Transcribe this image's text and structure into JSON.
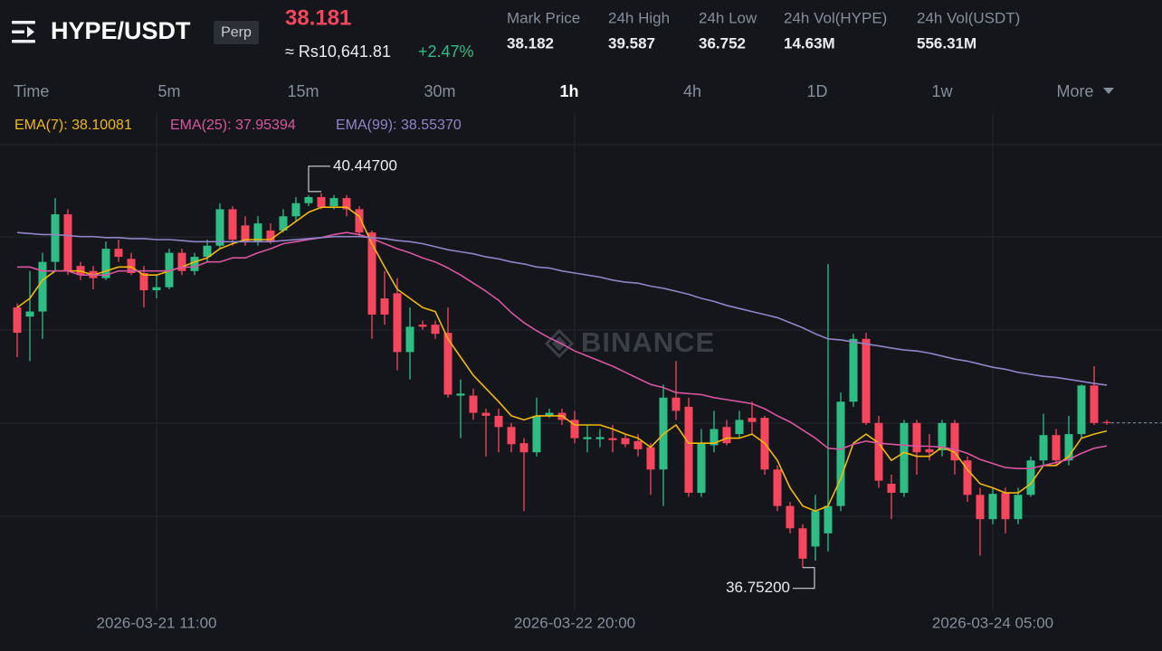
{
  "header": {
    "pair": "HYPE/USDT",
    "contract": "Perp",
    "price": 38.181,
    "price_local": "≈ Rs10,641.81",
    "change": "+2.47%",
    "stats": [
      {
        "label": "Mark Price",
        "value": 38.182
      },
      {
        "label": "24h High",
        "value": 39.587
      },
      {
        "label": "24h Low",
        "value": 36.752
      },
      {
        "label": "24h Vol(HYPE)",
        "value": "14.63M"
      },
      {
        "label": "24h Vol(USDT)",
        "value": "556.31M"
      }
    ]
  },
  "tabs": {
    "items": [
      "Time",
      "5m",
      "15m",
      "30m",
      "1h",
      "4h",
      "1D",
      "1w",
      "More"
    ],
    "active": 4
  },
  "chart_data": {
    "type": "candlestick",
    "categories": [
      null,
      null,
      null,
      null,
      null,
      null,
      null,
      null,
      null,
      null,
      null,
      "2026-03-21 11:00",
      null,
      null,
      null,
      null,
      null,
      null,
      null,
      null,
      null,
      null,
      null,
      null,
      null,
      null,
      null,
      null,
      null,
      null,
      null,
      null,
      null,
      null,
      null,
      null,
      null,
      null,
      null,
      null,
      null,
      null,
      null,
      null,
      "2026-03-22 20:00",
      null,
      null,
      null,
      null,
      null,
      null,
      null,
      null,
      null,
      null,
      null,
      null,
      null,
      null,
      null,
      null,
      null,
      null,
      null,
      null,
      null,
      null,
      null,
      null,
      null,
      null,
      null,
      null,
      null,
      null,
      null,
      null,
      "2026-03-24 05:00",
      null,
      null,
      null,
      null,
      null,
      null,
      null,
      null,
      null
    ],
    "open": [
      39.32,
      39.23,
      39.28,
      39.77,
      40.24,
      39.73,
      39.68,
      39.61,
      39.9,
      39.8,
      39.66,
      39.49,
      39.52,
      39.86,
      39.68,
      39.82,
      39.93,
      40.29,
      40.13,
      39.97,
      40.08,
      40.08,
      40.22,
      40.35,
      40.41,
      40.32,
      40.4,
      40.29,
      40.06,
      39.41,
      39.46,
      38.88,
      39.15,
      39.15,
      39.07,
      38.45,
      38.45,
      38.28,
      38.25,
      38.14,
      37.98,
      37.89,
      38.25,
      38.28,
      38.21,
      38.02,
      38.02,
      38.03,
      38.03,
      38.0,
      37.94,
      37.72,
      38.43,
      38.34,
      37.49,
      37.96,
      38.14,
      38.07,
      38.23,
      38.23,
      37.72,
      37.36,
      37.14,
      36.96,
      37.09,
      37.36,
      38.39,
      39.01,
      38.18,
      37.58,
      37.49,
      38.18,
      37.92,
      37.91,
      38.18,
      37.81,
      37.47,
      37.23,
      37.49,
      37.23,
      37.47,
      37.81,
      38.06,
      37.81,
      38.07,
      38.55,
      38.19
    ],
    "high": [
      39.36,
      39.68,
      39.86,
      40.4,
      40.29,
      39.77,
      39.73,
      39.97,
      39.99,
      39.86,
      39.73,
      39.64,
      39.9,
      39.9,
      39.86,
      39.99,
      40.35,
      40.32,
      40.22,
      40.22,
      40.15,
      40.29,
      40.41,
      40.43,
      40.447,
      40.43,
      40.43,
      40.32,
      40.08,
      39.68,
      39.61,
      39.32,
      39.19,
      39.19,
      39.32,
      38.61,
      38.52,
      38.32,
      38.32,
      38.18,
      38.03,
      38.43,
      38.32,
      38.32,
      38.3,
      38.16,
      38.12,
      38.16,
      38.07,
      38.07,
      37.98,
      38.56,
      38.79,
      38.43,
      38.12,
      38.3,
      38.21,
      38.3,
      38.39,
      38.25,
      37.76,
      37.4,
      37.18,
      37.47,
      39.75,
      38.48,
      39.06,
      39.07,
      38.25,
      37.67,
      38.21,
      38.21,
      38.07,
      38.21,
      38.21,
      37.85,
      37.54,
      37.54,
      37.54,
      37.54,
      37.85,
      38.27,
      38.12,
      38.25,
      38.56,
      38.74,
      38.21
    ],
    "low": [
      38.83,
      38.79,
      39.01,
      39.68,
      39.64,
      39.59,
      39.5,
      39.59,
      39.77,
      39.64,
      39.32,
      39.41,
      39.5,
      39.64,
      39.64,
      39.77,
      39.9,
      39.93,
      39.93,
      39.93,
      39.95,
      40.06,
      40.17,
      40.32,
      40.29,
      40.29,
      40.22,
      40.02,
      39.01,
      39.15,
      38.7,
      38.61,
      39.1,
      39.01,
      38.43,
      38.03,
      38.21,
      37.85,
      37.89,
      37.89,
      37.31,
      37.85,
      38.23,
      38.16,
      37.98,
      37.89,
      37.94,
      37.89,
      37.94,
      37.85,
      37.47,
      37.36,
      38.21,
      37.45,
      37.45,
      37.89,
      37.96,
      38.03,
      38.07,
      37.67,
      37.31,
      37.09,
      36.752,
      36.82,
      36.91,
      37.31,
      38.34,
      38.16,
      37.54,
      37.23,
      37.45,
      37.67,
      37.81,
      37.85,
      37.67,
      37.4,
      36.87,
      37.18,
      37.09,
      37.18,
      37.45,
      37.76,
      37.76,
      37.76,
      38.03,
      38.16,
      38.16
    ],
    "close": [
      39.07,
      39.28,
      39.77,
      40.24,
      39.68,
      39.64,
      39.61,
      39.9,
      39.82,
      39.66,
      39.49,
      39.52,
      39.86,
      39.68,
      39.82,
      39.93,
      40.29,
      39.99,
      39.97,
      40.15,
      39.97,
      40.22,
      40.35,
      40.41,
      40.31,
      40.4,
      40.29,
      40.06,
      39.25,
      39.25,
      38.88,
      39.13,
      39.13,
      39.06,
      38.46,
      38.47,
      38.28,
      38.25,
      38.14,
      37.97,
      37.89,
      38.25,
      38.28,
      38.21,
      38.03,
      38.04,
      38.04,
      38.01,
      37.97,
      37.92,
      37.72,
      38.43,
      38.3,
      37.49,
      37.98,
      38.12,
      37.98,
      38.21,
      38.19,
      37.72,
      37.36,
      37.14,
      36.84,
      37.31,
      37.36,
      38.39,
      39.01,
      38.18,
      37.61,
      37.49,
      38.18,
      37.89,
      37.89,
      38.18,
      37.81,
      37.47,
      37.23,
      37.48,
      37.23,
      37.47,
      37.81,
      38.06,
      37.81,
      38.07,
      38.55,
      38.18,
      38.181
    ],
    "up_color": "#2ebd85",
    "down_color": "#f6465d",
    "ylim": [
      36.33,
      41.24
    ],
    "grid": true,
    "series": [
      {
        "name": "EMA(7): 38.10081",
        "color": "#f0b90b",
        "values": [
          39.32,
          39.41,
          39.59,
          39.68,
          39.68,
          39.68,
          39.64,
          39.68,
          39.72,
          39.72,
          39.64,
          39.64,
          39.68,
          39.72,
          39.77,
          39.81,
          39.9,
          39.95,
          39.99,
          39.99,
          39.99,
          40.08,
          40.17,
          40.26,
          40.31,
          40.31,
          40.31,
          40.22,
          39.95,
          39.72,
          39.5,
          39.41,
          39.32,
          39.28,
          39.01,
          38.83,
          38.65,
          38.52,
          38.39,
          38.25,
          38.21,
          38.25,
          38.25,
          38.25,
          38.16,
          38.16,
          38.16,
          38.12,
          38.07,
          38.03,
          37.94,
          38.07,
          38.16,
          37.98,
          37.98,
          37.98,
          38.03,
          38.03,
          38.07,
          37.98,
          37.81,
          37.54,
          37.36,
          37.31,
          37.36,
          37.63,
          37.98,
          38.07,
          37.98,
          37.81,
          37.89,
          37.85,
          37.85,
          37.94,
          37.89,
          37.72,
          37.58,
          37.54,
          37.49,
          37.49,
          37.58,
          37.76,
          37.76,
          37.85,
          38.03,
          38.07,
          38.10081
        ]
      },
      {
        "name": "EMA(25): 37.95394",
        "color": "#d9559f",
        "values": [
          39.72,
          39.72,
          39.68,
          39.68,
          39.68,
          39.64,
          39.64,
          39.64,
          39.68,
          39.68,
          39.68,
          39.68,
          39.68,
          39.72,
          39.72,
          39.77,
          39.77,
          39.81,
          39.81,
          39.86,
          39.9,
          39.95,
          39.97,
          39.99,
          40.01,
          40.04,
          40.06,
          40.04,
          40.0,
          39.95,
          39.9,
          39.86,
          39.81,
          39.77,
          39.71,
          39.64,
          39.56,
          39.48,
          39.39,
          39.27,
          39.17,
          39.09,
          39.02,
          38.96,
          38.89,
          38.84,
          38.79,
          38.74,
          38.68,
          38.62,
          38.56,
          38.53,
          38.48,
          38.47,
          38.46,
          38.43,
          38.41,
          38.39,
          38.37,
          38.32,
          38.25,
          38.19,
          38.11,
          38.03,
          37.93,
          37.92,
          37.97,
          38.0,
          37.98,
          37.97,
          37.96,
          37.95,
          37.95,
          37.94,
          37.92,
          37.88,
          37.82,
          37.78,
          37.74,
          37.73,
          37.73,
          37.76,
          37.79,
          37.82,
          37.88,
          37.93,
          37.95394
        ]
      },
      {
        "name": "EMA(99): 38.55370",
        "color": "#9283c8",
        "values": [
          40.06,
          40.05,
          40.04,
          40.04,
          40.03,
          40.02,
          40.02,
          40.01,
          40.01,
          40.0,
          40.0,
          39.99,
          39.99,
          39.98,
          39.97,
          39.97,
          39.97,
          39.97,
          39.97,
          39.97,
          39.97,
          39.98,
          39.99,
          40.0,
          40.01,
          40.02,
          40.02,
          40.02,
          40.01,
          40.0,
          39.98,
          39.97,
          39.95,
          39.92,
          39.89,
          39.87,
          39.85,
          39.82,
          39.8,
          39.77,
          39.75,
          39.72,
          39.71,
          39.68,
          39.66,
          39.64,
          39.62,
          39.59,
          39.57,
          39.56,
          39.53,
          39.51,
          39.48,
          39.45,
          39.41,
          39.38,
          39.34,
          39.31,
          39.28,
          39.25,
          39.22,
          39.17,
          39.12,
          39.06,
          39.01,
          39.0,
          38.98,
          38.96,
          38.94,
          38.92,
          38.9,
          38.89,
          38.87,
          38.84,
          38.81,
          38.79,
          38.76,
          38.73,
          38.71,
          38.68,
          38.66,
          38.64,
          38.63,
          38.61,
          38.59,
          38.57,
          38.5537
        ]
      }
    ],
    "annotations": [
      {
        "value": 40.447,
        "label": "40.44700"
      },
      {
        "value": 36.752,
        "label": "36.75200"
      }
    ],
    "watermark": "BINANCE"
  }
}
